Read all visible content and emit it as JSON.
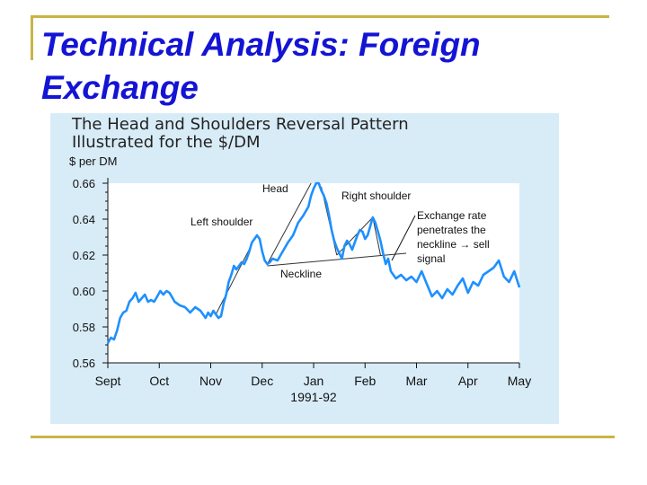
{
  "slide": {
    "title": "Technical Analysis: Foreign Exchange",
    "accent_color": "#1414d4",
    "rule_color": "#c8b545"
  },
  "chart_data": {
    "type": "line",
    "title_lines": [
      "The Head and Shoulders Reversal Pattern",
      "Illustrated for the $/DM"
    ],
    "ylabel": "$ per DM",
    "xlabel": "1991-92",
    "ylim": [
      0.56,
      0.66
    ],
    "yticks": [
      "0.56",
      "0.58",
      "0.60",
      "0.62",
      "0.64",
      "0.66"
    ],
    "ytick_values": [
      0.56,
      0.58,
      0.6,
      0.62,
      0.64,
      0.66
    ],
    "categories": [
      "Sept",
      "Oct",
      "Nov",
      "Dec",
      "Jan",
      "Feb",
      "Mar",
      "Apr",
      "May"
    ],
    "xlim": [
      0,
      8
    ],
    "series": [
      {
        "color": "#1e90ff",
        "x": [
          0,
          0.06,
          0.12,
          0.18,
          0.24,
          0.3,
          0.36,
          0.42,
          0.48,
          0.54,
          0.6,
          0.66,
          0.72,
          0.78,
          0.84,
          0.9,
          0.96,
          1.02,
          1.08,
          1.14,
          1.2,
          1.3,
          1.4,
          1.5,
          1.6,
          1.7,
          1.8,
          1.9,
          1.95,
          2.0,
          2.05,
          2.1,
          2.15,
          2.2,
          2.25,
          2.3,
          2.35,
          2.4,
          2.45,
          2.5,
          2.55,
          2.6,
          2.65,
          2.7,
          2.75,
          2.8,
          2.85,
          2.9,
          2.95,
          3.0,
          3.05,
          3.1,
          3.15,
          3.2,
          3.3,
          3.4,
          3.5,
          3.6,
          3.7,
          3.8,
          3.9,
          3.95,
          4.0,
          4.05,
          4.1,
          4.15,
          4.2,
          4.25,
          4.3,
          4.35,
          4.4,
          4.45,
          4.5,
          4.55,
          4.6,
          4.65,
          4.7,
          4.75,
          4.8,
          4.85,
          4.9,
          4.95,
          5.0,
          5.05,
          5.1,
          5.15,
          5.2,
          5.25,
          5.3,
          5.35,
          5.4,
          5.45,
          5.5,
          5.6,
          5.7,
          5.8,
          5.9,
          6.0,
          6.1,
          6.2,
          6.3,
          6.4,
          6.5,
          6.6,
          6.7,
          6.8,
          6.9,
          7.0,
          7.1,
          7.2,
          7.3,
          7.4,
          7.5,
          7.6,
          7.7,
          7.8,
          7.9,
          8.0
        ],
        "values": [
          0.571,
          0.574,
          0.573,
          0.578,
          0.585,
          0.588,
          0.589,
          0.594,
          0.596,
          0.599,
          0.594,
          0.596,
          0.598,
          0.594,
          0.595,
          0.594,
          0.597,
          0.6,
          0.598,
          0.6,
          0.599,
          0.594,
          0.592,
          0.591,
          0.588,
          0.591,
          0.589,
          0.585,
          0.588,
          0.586,
          0.589,
          0.587,
          0.585,
          0.586,
          0.593,
          0.598,
          0.605,
          0.609,
          0.614,
          0.612,
          0.614,
          0.616,
          0.615,
          0.618,
          0.622,
          0.627,
          0.629,
          0.631,
          0.629,
          0.622,
          0.617,
          0.615,
          0.616,
          0.618,
          0.617,
          0.622,
          0.627,
          0.631,
          0.638,
          0.642,
          0.647,
          0.653,
          0.657,
          0.66,
          0.66,
          0.656,
          0.653,
          0.649,
          0.642,
          0.634,
          0.628,
          0.624,
          0.621,
          0.618,
          0.625,
          0.628,
          0.626,
          0.623,
          0.627,
          0.631,
          0.634,
          0.633,
          0.629,
          0.631,
          0.636,
          0.641,
          0.638,
          0.633,
          0.628,
          0.621,
          0.615,
          0.618,
          0.611,
          0.607,
          0.609,
          0.606,
          0.608,
          0.605,
          0.611,
          0.604,
          0.597,
          0.6,
          0.596,
          0.601,
          0.598,
          0.603,
          0.607,
          0.599,
          0.605,
          0.603,
          0.609,
          0.611,
          0.613,
          0.617,
          0.608,
          0.605,
          0.611,
          0.602
        ]
      }
    ],
    "grid": false,
    "annotations": [
      {
        "id": "head",
        "lines": [
          "Head"
        ]
      },
      {
        "id": "left-shoulder",
        "lines": [
          "Left shoulder"
        ]
      },
      {
        "id": "right-shoulder",
        "lines": [
          "Right shoulder"
        ]
      },
      {
        "id": "neckline",
        "lines": [
          "Neckline"
        ]
      },
      {
        "id": "sell-signal",
        "lines": [
          "Exchange rate",
          "penetrates the",
          "neckline → sell",
          "signal"
        ]
      }
    ],
    "colors": {
      "line": "#1e90ff",
      "panel": "#d8ecf8",
      "plot_bg": "#ffffff",
      "trend": "#333333"
    }
  }
}
